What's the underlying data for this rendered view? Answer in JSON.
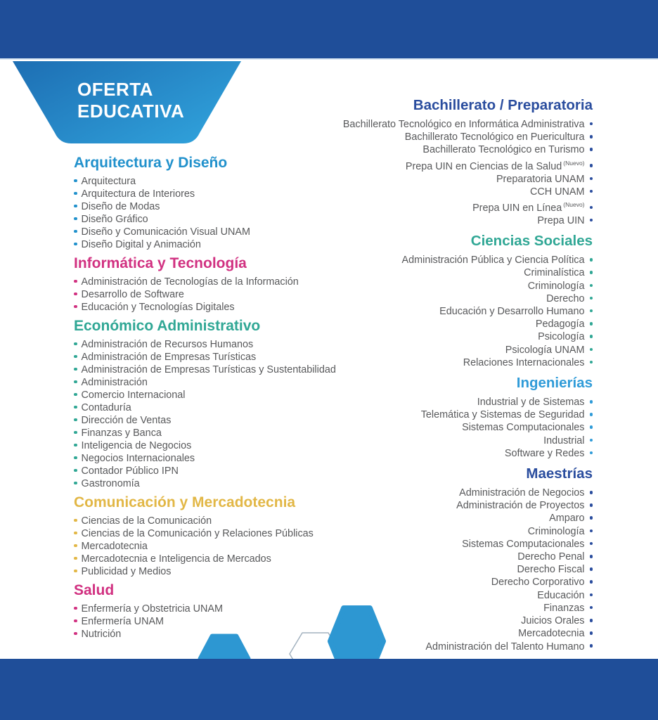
{
  "banner": {
    "line1": "OFERTA",
    "line2": "EDUCATIVA"
  },
  "colors": {
    "navy_bar": "#1f4e99",
    "banner_start": "#1d6eb3",
    "banner_end": "#2f9fd9",
    "hexagon_blue": "#2d97d2",
    "hexagon_outline": "#a3b2bf",
    "body_text": "#58595b"
  },
  "left_sections": [
    {
      "title": "Arquitectura y Diseño",
      "color": "#2191cc",
      "items": [
        "Arquitectura",
        "Arquitectura de Interiores",
        "Diseño de Modas",
        "Diseño Gráfico",
        "Diseño y Comunicación Visual UNAM",
        "Diseño Digital y Animación"
      ]
    },
    {
      "title": "Informática y Tecnología",
      "color": "#d13181",
      "items": [
        "Administración de Tecnologías de la Información",
        "Desarrollo de Software",
        "Educación y Tecnologías Digitales"
      ]
    },
    {
      "title": "Económico Administrativo",
      "color": "#30a795",
      "items": [
        "Administración de Recursos Humanos",
        "Administración de Empresas Turísticas",
        "Administración de Empresas Turísticas y Sustentabilidad",
        "Administración",
        "Comercio Internacional",
        "Contaduría",
        "Dirección de Ventas",
        "Finanzas y Banca",
        "Inteligencia de Negocios",
        "Negocios Internacionales",
        "Contador Público IPN",
        "Gastronomía"
      ]
    },
    {
      "title": "Comunicación y Mercadotecnia",
      "color": "#e2b746",
      "items": [
        "Ciencias de la Comunicación",
        "Ciencias de la Comunicación y Relaciones Públicas",
        "Mercadotecnia",
        "Mercadotecnia e Inteligencia de Mercados",
        "Publicidad y Medios"
      ]
    },
    {
      "title": "Salud",
      "color": "#d13181",
      "items": [
        "Enfermería y Obstetricia UNAM",
        "Enfermería UNAM",
        "Nutrición"
      ]
    }
  ],
  "right_sections": [
    {
      "title": "Bachillerato / Preparatoria",
      "color": "#2a4d9e",
      "items": [
        "Bachillerato Tecnológico en Informática Administrativa",
        "Bachillerato Tecnológico en Puericultura",
        "Bachillerato Tecnológico en Turismo",
        {
          "label": "Prepa UIN en Ciencias de la Salud",
          "suffix": "(Nuevo)"
        },
        "Preparatoria UNAM",
        "CCH UNAM",
        {
          "label": "Prepa UIN en Línea",
          "suffix": "(Nuevo)"
        },
        "Prepa UIN"
      ]
    },
    {
      "title": "Ciencias Sociales",
      "color": "#30a795",
      "items": [
        "Administración Pública y Ciencia Política",
        "Criminalística",
        "Criminología",
        "Derecho",
        "Educación y Desarrollo Humano",
        "Pedagogía",
        "Psicología",
        "Psicología UNAM",
        "Relaciones Internacionales"
      ]
    },
    {
      "title": "Ingenierías",
      "color": "#2f9bd8",
      "items": [
        "Industrial y de Sistemas",
        "Telemática y Sistemas de Seguridad",
        "Sistemas Computacionales",
        "Industrial",
        "Software y Redes"
      ]
    },
    {
      "title": "Maestrías",
      "color": "#2a4d9e",
      "items": [
        "Administración de Negocios",
        "Administración de Proyectos",
        "Amparo",
        "Criminología",
        "Sistemas Computacionales",
        "Derecho Penal",
        "Derecho Fiscal",
        "Derecho Corporativo",
        "Educación",
        "Finanzas",
        "Juicios Orales",
        "Mercadotecnia",
        "Administración del Talento Humano"
      ]
    }
  ]
}
